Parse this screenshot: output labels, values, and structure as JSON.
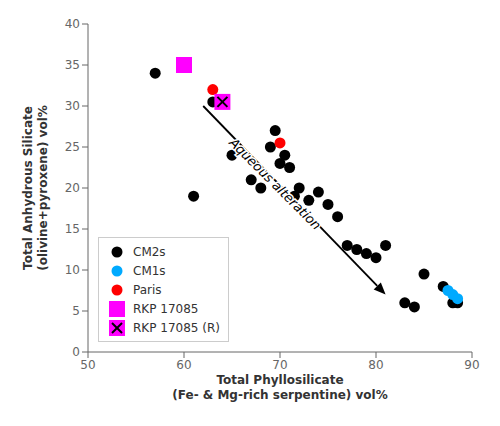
{
  "chart_data": {
    "type": "scatter",
    "xlabel": "Total Phyllosilicate\n(Fe- & Mg-rich serpentine) vol%",
    "ylabel": "Total Anhydrous Silicate\n(olivine+pyroxene) vol%",
    "xlim": [
      50,
      90
    ],
    "ylim": [
      0,
      40
    ],
    "xticks": [
      50,
      60,
      70,
      80,
      90
    ],
    "yticks": [
      0,
      5,
      10,
      15,
      20,
      25,
      30,
      35,
      40
    ],
    "grid": false,
    "legend": "lower left",
    "series": [
      {
        "name": "CM2s",
        "color": "#000000",
        "marker": "circle",
        "x": [
          57,
          61,
          63,
          65,
          67,
          68,
          69,
          69.5,
          70,
          70.5,
          71,
          71.5,
          72,
          73,
          74,
          75,
          76,
          77,
          78,
          79,
          80,
          81,
          83,
          84,
          85,
          87,
          88,
          88.5
        ],
        "y": [
          34,
          19,
          30.5,
          24,
          21,
          20,
          25,
          27,
          23,
          24,
          22.5,
          19,
          20,
          18.5,
          19.5,
          18,
          16.5,
          13,
          12.5,
          12,
          11.5,
          13,
          6,
          5.5,
          9.5,
          8,
          6,
          6
        ]
      },
      {
        "name": "CM1s",
        "color": "#00aaff",
        "marker": "circle",
        "x": [
          87.5,
          88,
          88.5
        ],
        "y": [
          7.5,
          7,
          6.5
        ]
      },
      {
        "name": "Paris",
        "color": "#ff0000",
        "marker": "circle",
        "x": [
          63,
          70
        ],
        "y": [
          32,
          25.5
        ]
      },
      {
        "name": "RKP 17085",
        "color": "#ff00ff",
        "marker": "square",
        "x": [
          60
        ],
        "y": [
          35
        ]
      },
      {
        "name": "RKP 17085 (R)",
        "color": "#ff00ff",
        "marker": "square_x",
        "x": [
          64
        ],
        "y": [
          30.5
        ]
      }
    ],
    "annotations": [
      {
        "text": "Aqueous alteration",
        "x": 69.5,
        "y": 20.5,
        "arrow": {
          "from": [
            62,
            30
          ],
          "to": [
            81,
            7
          ]
        }
      }
    ]
  }
}
